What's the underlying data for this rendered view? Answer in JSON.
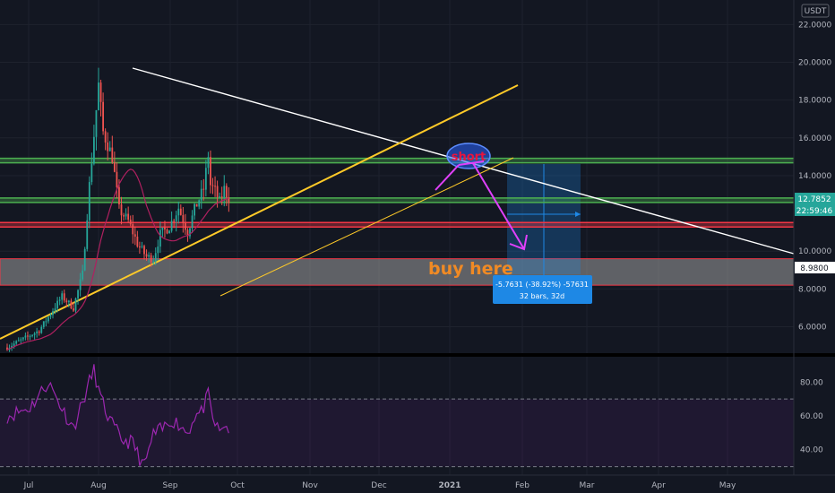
{
  "currency_label": "USDT",
  "colors": {
    "background": "#131722",
    "up": "#26a69a",
    "down": "#ef5350",
    "ma": "#b02060",
    "resistance": "#4caf50",
    "support": "#f23645",
    "channel": "#ffca28",
    "trendline": "#ffffff",
    "rsi": "#9c27b0",
    "measure": "#1e88e5"
  },
  "annotations": {
    "short_label": "short",
    "buy_label": "buy here",
    "measure_line1": "-5.7631 (-38.92%) -57631",
    "measure_line2": "32 bars, 32d"
  },
  "chart_data": {
    "type": "candlestick",
    "x_ticks": [
      "Jul",
      "Aug",
      "Sep",
      "Oct",
      "Nov",
      "Dec",
      "2021",
      "Feb",
      "Mar",
      "Apr",
      "May"
    ],
    "price_axis": {
      "ticks": [
        "22.0000",
        "20.0000",
        "18.0000",
        "16.0000",
        "14.0000",
        "10.0000",
        "8.0000",
        "6.0000"
      ],
      "range": [
        4.6,
        23.3
      ]
    },
    "price_tags": {
      "last_price": "12.7852",
      "countdown": "22:59:46",
      "level": "8.9800"
    },
    "key_levels": [
      14.8,
      12.7,
      11.4
    ],
    "buy_zone": [
      8.2,
      9.6
    ],
    "price_path": [
      [
        0,
        4.9
      ],
      [
        14,
        5.8
      ],
      [
        24,
        7.6
      ],
      [
        29,
        7.0
      ],
      [
        33,
        8.8
      ],
      [
        36,
        13.5
      ],
      [
        40,
        18.8
      ],
      [
        42,
        16.3
      ],
      [
        46,
        15.0
      ],
      [
        49,
        12.2
      ],
      [
        53,
        11.6
      ],
      [
        57,
        10.4
      ],
      [
        61,
        9.7
      ],
      [
        64,
        9.6
      ],
      [
        67,
        10.9
      ],
      [
        71,
        11.3
      ],
      [
        75,
        12.3
      ],
      [
        79,
        11.0
      ],
      [
        82,
        12.2
      ],
      [
        86,
        13.3
      ],
      [
        88,
        15.1
      ],
      [
        89,
        13.5
      ],
      [
        91,
        13.2
      ],
      [
        93,
        12.6
      ],
      [
        95,
        13.3
      ],
      [
        97,
        12.8
      ]
    ],
    "rsi_axis": {
      "ticks": [
        "80.00",
        "60.00",
        "40.00"
      ],
      "range": [
        25,
        95
      ],
      "bands": [
        30,
        70
      ]
    },
    "rsi_path": [
      [
        0,
        60
      ],
      [
        10,
        65
      ],
      [
        18,
        80
      ],
      [
        25,
        62
      ],
      [
        29,
        53
      ],
      [
        33,
        68
      ],
      [
        36,
        80
      ],
      [
        38,
        87
      ],
      [
        41,
        70
      ],
      [
        45,
        57
      ],
      [
        50,
        46
      ],
      [
        55,
        44
      ],
      [
        58,
        35
      ],
      [
        60,
        30
      ],
      [
        64,
        49
      ],
      [
        68,
        52
      ],
      [
        72,
        58
      ],
      [
        76,
        54
      ],
      [
        79,
        50
      ],
      [
        82,
        60
      ],
      [
        85,
        62
      ],
      [
        88,
        72
      ],
      [
        90,
        58
      ],
      [
        93,
        50
      ],
      [
        95,
        55
      ],
      [
        97,
        52
      ]
    ]
  }
}
